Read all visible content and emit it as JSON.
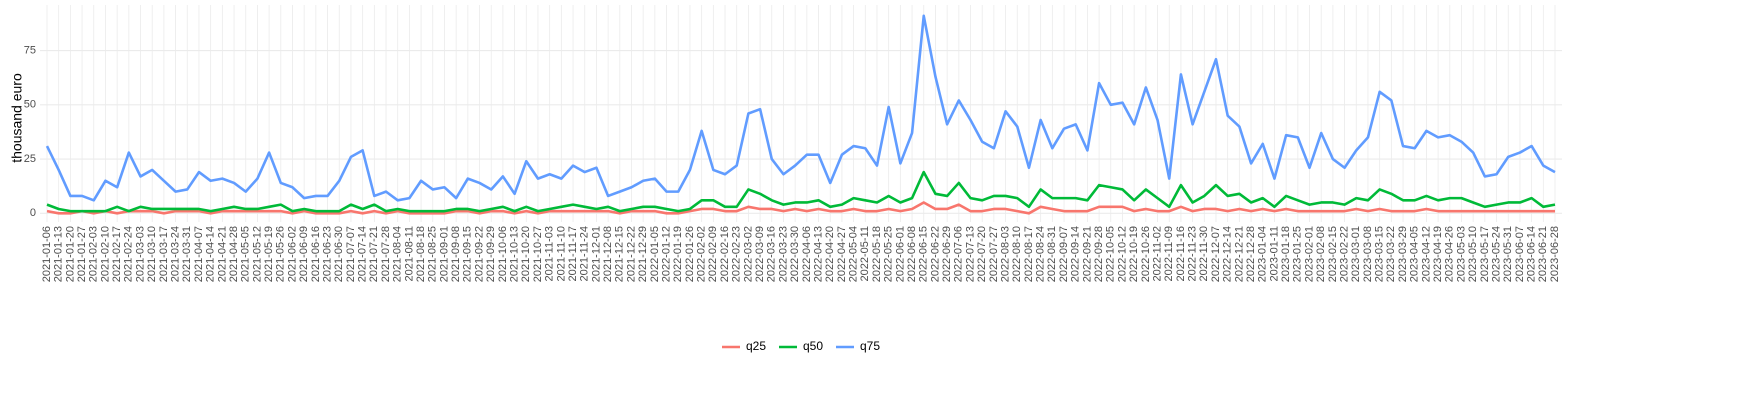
{
  "chart_data": {
    "type": "line",
    "ylabel": "thousand euro",
    "categories": [
      "2021-01-06",
      "2021-01-13",
      "2021-01-20",
      "2021-01-27",
      "2021-02-03",
      "2021-02-10",
      "2021-02-17",
      "2021-02-24",
      "2021-03-03",
      "2021-03-10",
      "2021-03-17",
      "2021-03-24",
      "2021-03-31",
      "2021-04-07",
      "2021-04-14",
      "2021-04-21",
      "2021-04-28",
      "2021-05-05",
      "2021-05-12",
      "2021-05-19",
      "2021-05-26",
      "2021-06-02",
      "2021-06-09",
      "2021-06-16",
      "2021-06-23",
      "2021-06-30",
      "2021-07-07",
      "2021-07-14",
      "2021-07-21",
      "2021-07-28",
      "2021-08-04",
      "2021-08-11",
      "2021-08-18",
      "2021-08-25",
      "2021-09-01",
      "2021-09-08",
      "2021-09-15",
      "2021-09-22",
      "2021-09-29",
      "2021-10-06",
      "2021-10-13",
      "2021-10-20",
      "2021-10-27",
      "2021-11-03",
      "2021-11-10",
      "2021-11-17",
      "2021-11-24",
      "2021-12-01",
      "2021-12-08",
      "2021-12-15",
      "2021-12-22",
      "2021-12-29",
      "2022-01-05",
      "2022-01-12",
      "2022-01-19",
      "2022-01-26",
      "2022-02-02",
      "2022-02-09",
      "2022-02-16",
      "2022-02-23",
      "2022-03-02",
      "2022-03-09",
      "2022-03-16",
      "2022-03-23",
      "2022-03-30",
      "2022-04-06",
      "2022-04-13",
      "2022-04-20",
      "2022-04-27",
      "2022-05-04",
      "2022-05-11",
      "2022-05-18",
      "2022-05-25",
      "2022-06-01",
      "2022-06-08",
      "2022-06-15",
      "2022-06-22",
      "2022-06-29",
      "2022-07-06",
      "2022-07-13",
      "2022-07-20",
      "2022-07-27",
      "2022-08-03",
      "2022-08-10",
      "2022-08-17",
      "2022-08-24",
      "2022-08-31",
      "2022-09-07",
      "2022-09-14",
      "2022-09-21",
      "2022-09-28",
      "2022-10-05",
      "2022-10-12",
      "2022-10-19",
      "2022-10-26",
      "2022-11-02",
      "2022-11-09",
      "2022-11-16",
      "2022-11-23",
      "2022-11-30",
      "2022-12-07",
      "2022-12-14",
      "2022-12-21",
      "2022-12-28",
      "2023-01-04",
      "2023-01-11",
      "2023-01-18",
      "2023-01-25",
      "2023-02-01",
      "2023-02-08",
      "2023-02-15",
      "2023-02-22",
      "2023-03-01",
      "2023-03-08",
      "2023-03-15",
      "2023-03-22",
      "2023-03-29",
      "2023-04-05",
      "2023-04-12",
      "2023-04-19",
      "2023-04-26",
      "2023-05-03",
      "2023-05-10",
      "2023-05-17",
      "2023-05-24",
      "2023-05-31",
      "2023-06-07",
      "2023-06-14",
      "2023-06-21",
      "2023-06-28"
    ],
    "series": [
      {
        "name": "q25",
        "color": "#F8766D",
        "values": [
          1,
          0,
          0,
          1,
          0,
          1,
          0,
          1,
          1,
          1,
          0,
          1,
          1,
          1,
          0,
          1,
          1,
          1,
          1,
          1,
          1,
          0,
          1,
          0,
          0,
          0,
          1,
          0,
          1,
          0,
          1,
          0,
          0,
          0,
          0,
          1,
          1,
          0,
          1,
          1,
          0,
          1,
          0,
          1,
          1,
          1,
          1,
          1,
          1,
          0,
          1,
          1,
          1,
          0,
          0,
          1,
          2,
          2,
          1,
          1,
          3,
          2,
          2,
          1,
          2,
          1,
          2,
          1,
          1,
          2,
          1,
          1,
          2,
          1,
          2,
          5,
          2,
          2,
          4,
          1,
          1,
          2,
          2,
          1,
          0,
          3,
          2,
          1,
          1,
          1,
          3,
          3,
          3,
          1,
          2,
          1,
          1,
          3,
          1,
          2,
          2,
          1,
          2,
          1,
          2,
          1,
          2,
          1,
          1,
          1,
          1,
          1,
          2,
          1,
          2,
          1,
          1,
          1,
          2,
          1,
          1,
          1,
          1,
          1,
          1,
          1,
          1,
          1,
          1,
          1
        ]
      },
      {
        "name": "q50",
        "color": "#00BA38",
        "values": [
          4,
          2,
          1,
          1,
          1,
          1,
          3,
          1,
          3,
          2,
          2,
          2,
          2,
          2,
          1,
          2,
          3,
          2,
          2,
          3,
          4,
          1,
          2,
          1,
          1,
          1,
          4,
          2,
          4,
          1,
          2,
          1,
          1,
          1,
          1,
          2,
          2,
          1,
          2,
          3,
          1,
          3,
          1,
          2,
          3,
          4,
          3,
          2,
          3,
          1,
          2,
          3,
          3,
          2,
          1,
          2,
          6,
          6,
          3,
          3,
          11,
          9,
          6,
          4,
          5,
          5,
          6,
          3,
          4,
          7,
          6,
          5,
          8,
          5,
          7,
          19,
          9,
          8,
          14,
          7,
          6,
          8,
          8,
          7,
          3,
          11,
          7,
          7,
          7,
          6,
          13,
          12,
          11,
          6,
          11,
          7,
          3,
          13,
          5,
          8,
          13,
          8,
          9,
          5,
          7,
          3,
          8,
          6,
          4,
          5,
          5,
          4,
          7,
          6,
          11,
          9,
          6,
          6,
          8,
          6,
          7,
          7,
          5,
          3,
          4,
          5,
          5,
          7,
          3,
          4
        ]
      },
      {
        "name": "q75",
        "color": "#619CFF",
        "values": [
          31,
          20,
          8,
          8,
          6,
          15,
          12,
          28,
          17,
          20,
          15,
          10,
          11,
          19,
          15,
          16,
          14,
          10,
          16,
          28,
          14,
          12,
          7,
          8,
          8,
          15,
          26,
          29,
          8,
          10,
          6,
          7,
          15,
          11,
          12,
          7,
          16,
          14,
          11,
          17,
          9,
          24,
          16,
          18,
          16,
          22,
          19,
          21,
          8,
          10,
          12,
          15,
          16,
          10,
          10,
          20,
          38,
          20,
          18,
          22,
          46,
          48,
          25,
          18,
          22,
          27,
          27,
          14,
          27,
          31,
          30,
          22,
          49,
          23,
          37,
          91,
          63,
          41,
          52,
          43,
          33,
          30,
          47,
          40,
          21,
          43,
          30,
          39,
          41,
          29,
          60,
          50,
          51,
          41,
          58,
          43,
          16,
          64,
          41,
          56,
          71,
          45,
          40,
          23,
          32,
          16,
          36,
          35,
          21,
          37,
          25,
          21,
          29,
          35,
          56,
          52,
          31,
          30,
          38,
          35,
          36,
          33,
          28,
          17,
          18,
          26,
          28,
          31,
          22,
          19
        ]
      }
    ],
    "ylim": [
      -4,
      96
    ],
    "yticks": [
      0,
      25,
      50,
      75
    ],
    "grid": true,
    "legend": "bottom"
  }
}
